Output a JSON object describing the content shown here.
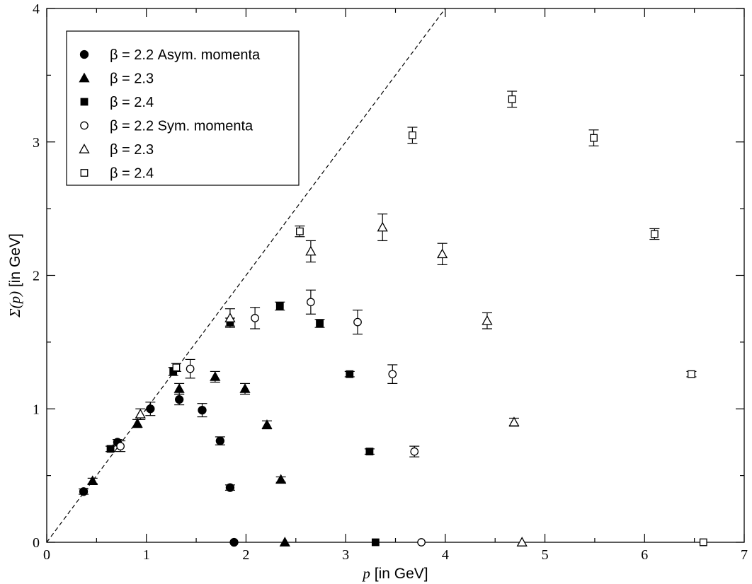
{
  "chart_data": {
    "type": "scatter",
    "title": "",
    "xlabel": {
      "var": "p",
      "unit": "[in GeV]"
    },
    "ylabel": {
      "var": "Σ(p)",
      "unit": "[in GeV]"
    },
    "xlim": [
      0,
      7
    ],
    "ylim": [
      0,
      4
    ],
    "xticks": [
      0,
      1,
      2,
      3,
      4,
      5,
      6,
      7
    ],
    "yticks": [
      0,
      1,
      2,
      3,
      4
    ],
    "grid": false,
    "legend_position": "top-left",
    "reference_line": {
      "style": "dashed",
      "from": [
        0,
        0
      ],
      "to": [
        4,
        4
      ]
    },
    "series": [
      {
        "name": "β = 2.2 Asym. momenta",
        "marker": "circle",
        "filled": true,
        "points": [
          {
            "x": 0.37,
            "y": 0.38,
            "err": 0.02
          },
          {
            "x": 0.71,
            "y": 0.75,
            "err": 0.02
          },
          {
            "x": 1.04,
            "y": 1.0,
            "err": 0.05
          },
          {
            "x": 1.33,
            "y": 1.07,
            "err": 0.04
          },
          {
            "x": 1.56,
            "y": 0.99,
            "err": 0.05
          },
          {
            "x": 1.74,
            "y": 0.76,
            "err": 0.03
          },
          {
            "x": 1.84,
            "y": 0.41,
            "err": 0.02
          },
          {
            "x": 1.88,
            "y": 0.0,
            "err": 0
          }
        ]
      },
      {
        "name": "β = 2.3",
        "marker": "triangle",
        "filled": true,
        "points": [
          {
            "x": 0.46,
            "y": 0.46,
            "err": 0.02
          },
          {
            "x": 0.91,
            "y": 0.89,
            "err": 0.03
          },
          {
            "x": 1.33,
            "y": 1.15,
            "err": 0.04
          },
          {
            "x": 1.69,
            "y": 1.24,
            "err": 0.04
          },
          {
            "x": 1.99,
            "y": 1.15,
            "err": 0.04
          },
          {
            "x": 2.21,
            "y": 0.88,
            "err": 0.03
          },
          {
            "x": 2.35,
            "y": 0.47,
            "err": 0.02
          },
          {
            "x": 2.39,
            "y": 0.0,
            "err": 0
          }
        ]
      },
      {
        "name": "β = 2.4",
        "marker": "square",
        "filled": true,
        "points": [
          {
            "x": 0.64,
            "y": 0.7,
            "err": 0.02
          },
          {
            "x": 1.27,
            "y": 1.28,
            "err": 0.03
          },
          {
            "x": 1.84,
            "y": 1.65,
            "err": 0.03
          },
          {
            "x": 2.34,
            "y": 1.77,
            "err": 0.03
          },
          {
            "x": 2.74,
            "y": 1.64,
            "err": 0.03
          },
          {
            "x": 3.04,
            "y": 1.26,
            "err": 0.02
          },
          {
            "x": 3.24,
            "y": 0.68,
            "err": 0.02
          },
          {
            "x": 3.3,
            "y": 0.0,
            "err": 0
          }
        ]
      },
      {
        "name": "β = 2.2 Sym. momenta",
        "marker": "circle",
        "filled": false,
        "points": [
          {
            "x": 0.74,
            "y": 0.72,
            "err": 0.04
          },
          {
            "x": 1.44,
            "y": 1.3,
            "err": 0.07
          },
          {
            "x": 2.09,
            "y": 1.68,
            "err": 0.08
          },
          {
            "x": 2.65,
            "y": 1.8,
            "err": 0.09
          },
          {
            "x": 3.12,
            "y": 1.65,
            "err": 0.09
          },
          {
            "x": 3.47,
            "y": 1.26,
            "err": 0.07
          },
          {
            "x": 3.69,
            "y": 0.68,
            "err": 0.04
          },
          {
            "x": 3.76,
            "y": 0.0,
            "err": 0
          }
        ]
      },
      {
        "name": "β = 2.3",
        "marker": "triangle",
        "filled": false,
        "points": [
          {
            "x": 0.94,
            "y": 0.96,
            "err": 0.04
          },
          {
            "x": 1.84,
            "y": 1.68,
            "err": 0.07
          },
          {
            "x": 2.65,
            "y": 2.18,
            "err": 0.08
          },
          {
            "x": 3.37,
            "y": 2.36,
            "err": 0.1
          },
          {
            "x": 3.97,
            "y": 2.16,
            "err": 0.08
          },
          {
            "x": 4.42,
            "y": 1.66,
            "err": 0.06
          },
          {
            "x": 4.69,
            "y": 0.9,
            "err": 0.03
          },
          {
            "x": 4.77,
            "y": 0.0,
            "err": 0
          }
        ]
      },
      {
        "name": "β = 2.4",
        "marker": "square",
        "filled": false,
        "points": [
          {
            "x": 1.3,
            "y": 1.31,
            "err": 0.03
          },
          {
            "x": 2.54,
            "y": 2.33,
            "err": 0.04
          },
          {
            "x": 3.67,
            "y": 3.05,
            "err": 0.06
          },
          {
            "x": 4.67,
            "y": 3.32,
            "err": 0.06
          },
          {
            "x": 5.49,
            "y": 3.03,
            "err": 0.06
          },
          {
            "x": 6.1,
            "y": 2.31,
            "err": 0.04
          },
          {
            "x": 6.47,
            "y": 1.26,
            "err": 0.02
          },
          {
            "x": 6.59,
            "y": 0.0,
            "err": 0
          }
        ]
      }
    ]
  }
}
